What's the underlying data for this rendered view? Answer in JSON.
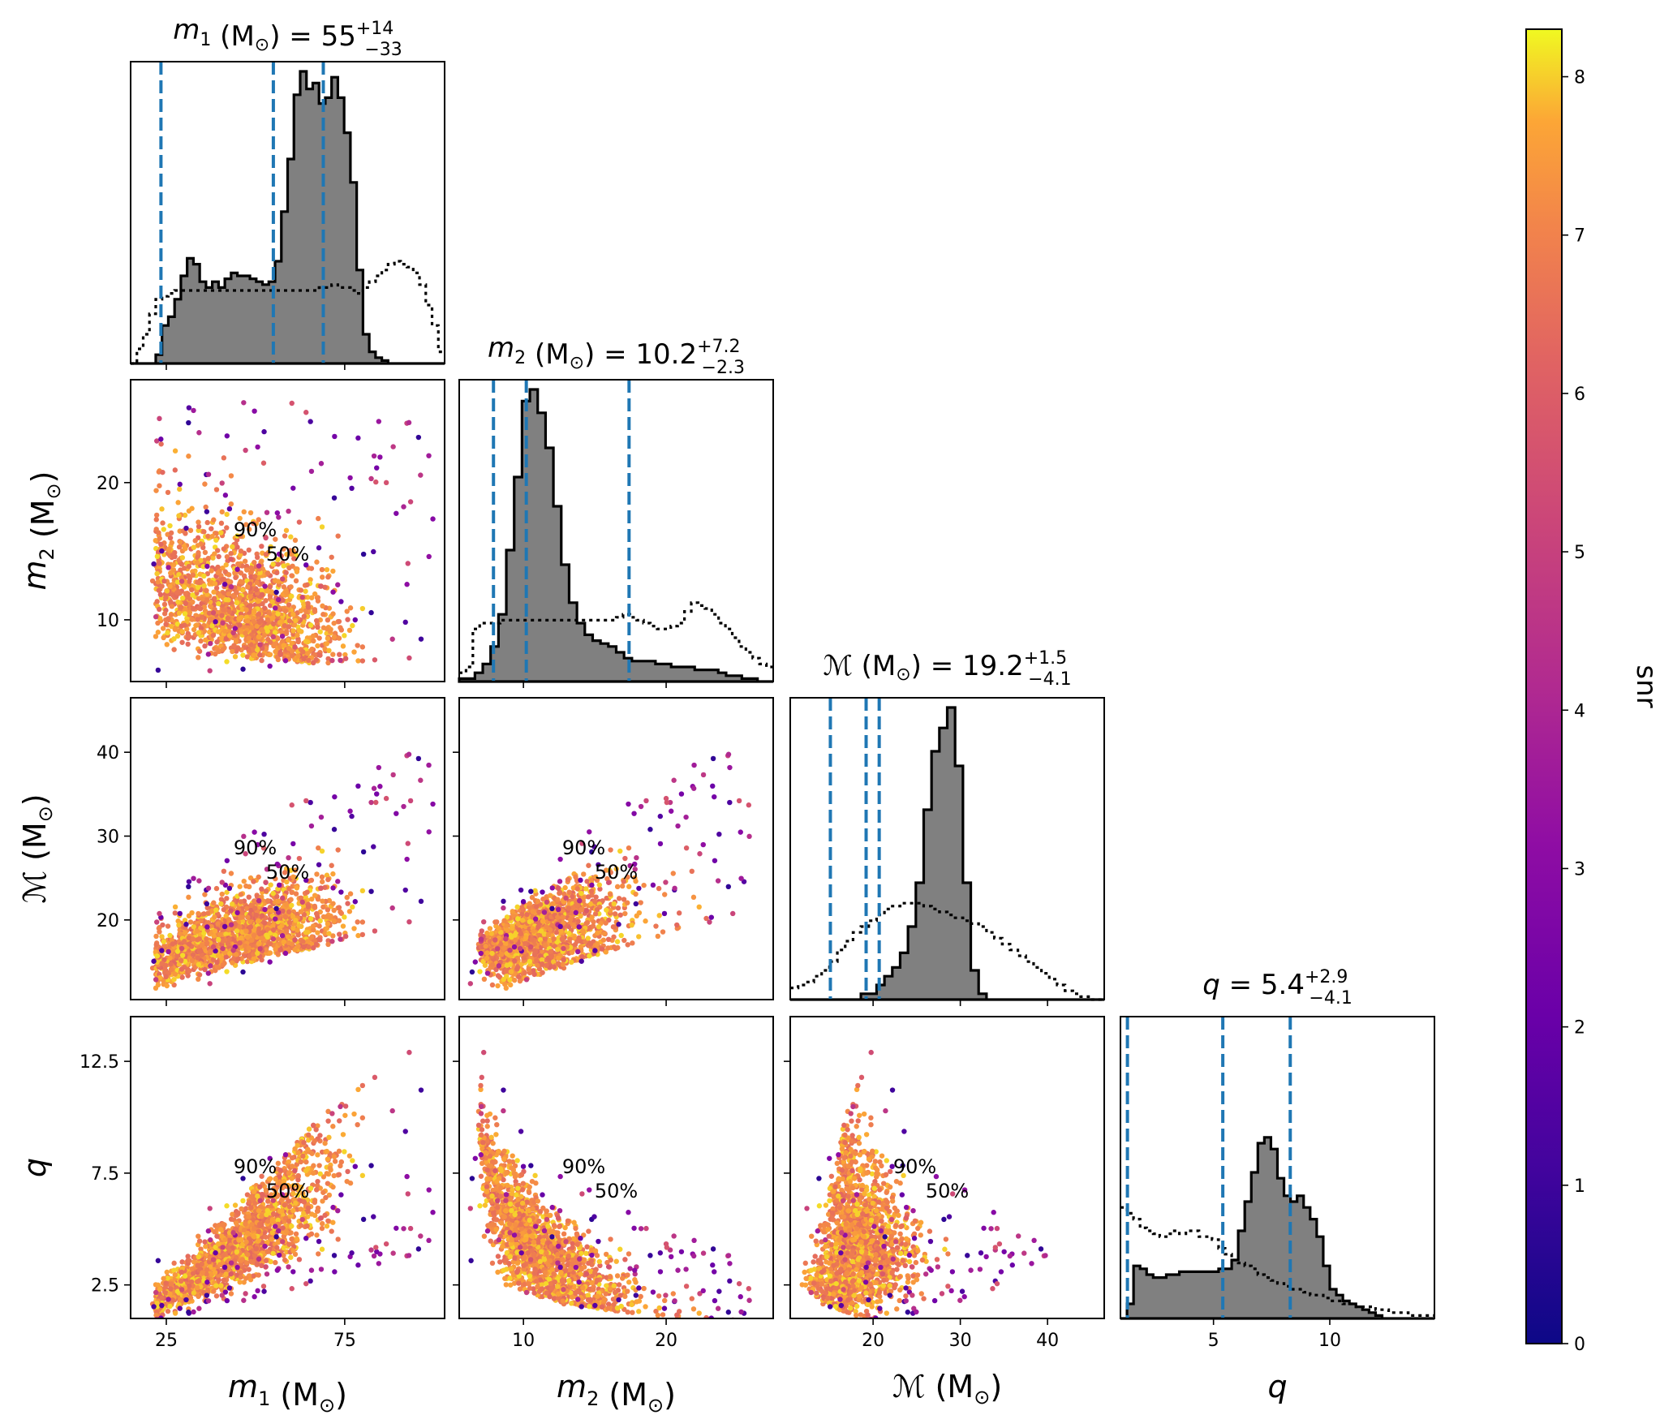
{
  "chart_data": {
    "type": "scatter",
    "kind": "corner-plot",
    "parameters": [
      {
        "key": "m1",
        "sym": "m",
        "sub": "1",
        "unit": "(M",
        "title_value": "55",
        "err_up": "+14",
        "err_dn": "−33",
        "axis_label_rest": " (M⊙)",
        "range": [
          15,
          103
        ],
        "ticks": [
          25,
          75
        ],
        "tick_labels": [
          "25",
          "75"
        ],
        "quantiles": [
          23.5,
          55.0,
          69.0
        ]
      },
      {
        "key": "m2",
        "sym": "m",
        "sub": "2",
        "unit": "(M",
        "title_value": "10.2",
        "err_up": "+7.2",
        "err_dn": "−2.3",
        "axis_label_rest": " (M⊙)",
        "range": [
          5.5,
          27.5
        ],
        "ticks": [
          10,
          20
        ],
        "tick_labels": [
          "10",
          "20"
        ],
        "quantiles": [
          7.9,
          10.2,
          17.4
        ]
      },
      {
        "key": "mc",
        "sym": "ℳ",
        "sub": "",
        "unit": "(M",
        "title_value": "19.2",
        "err_up": "+1.5",
        "err_dn": "−4.1",
        "axis_label_rest": " (M⊙)",
        "range": [
          10.5,
          46.5
        ],
        "ticks": [
          20,
          30,
          40
        ],
        "tick_labels": [
          "20",
          "30",
          "40"
        ],
        "quantiles": [
          15.1,
          19.2,
          20.7
        ]
      },
      {
        "key": "q",
        "sym": "q",
        "sub": "",
        "unit": "",
        "title_value": "5.4",
        "err_up": "+2.9",
        "err_dn": "−4.1",
        "axis_label_rest": "",
        "range": [
          1.0,
          14.5
        ],
        "ticks": [
          2.5,
          7.5,
          12.5
        ],
        "tick_labels": [
          "2.5",
          "7.5",
          "12.5"
        ],
        "diag_ticks": [
          5,
          10
        ],
        "diag_tick_labels": [
          "5",
          "10"
        ],
        "quantiles": [
          1.3,
          5.4,
          8.3
        ]
      }
    ],
    "title_m1": "m1 (M⊙) = 55 +14 −33",
    "title_m2": "m2 (M⊙) = 10.2 +7.2 −2.3",
    "title_mc": "ℳ (M⊙) = 19.2 +1.5 −4.1",
    "title_q": "q = 5.4 +2.9 −4.1",
    "contour_labels": [
      "50%",
      "90%"
    ],
    "colorbar": {
      "label": "snr",
      "min": 0,
      "max": 8.3,
      "ticks": [
        0,
        1,
        2,
        3,
        4,
        5,
        6,
        7,
        8
      ],
      "tick_labels": [
        "0",
        "1",
        "2",
        "3",
        "4",
        "5",
        "6",
        "7",
        "8"
      ],
      "colormap": "plasma"
    },
    "colors": {
      "quantile_line": "#1f77b4",
      "histogram_fill": "#808080",
      "contour": "#000000"
    },
    "histograms": {
      "m1": {
        "posterior": [
          0,
          0,
          0,
          0,
          3,
          13,
          16,
          22,
          30,
          36,
          34,
          28,
          26,
          28,
          26,
          29,
          31,
          30,
          30,
          29,
          28,
          27,
          28,
          35,
          52,
          70,
          92,
          100,
          94,
          96,
          89,
          91,
          98,
          91,
          79,
          62,
          32,
          10,
          4,
          2,
          1,
          0,
          0,
          0,
          0,
          0,
          0,
          0,
          0,
          0
        ],
        "prior": [
          0,
          5,
          10,
          17,
          22,
          23,
          24,
          25,
          25,
          25,
          25,
          25,
          25,
          25,
          25,
          25,
          25,
          25,
          25,
          25,
          25,
          25,
          25,
          25,
          25,
          25,
          25,
          25,
          25,
          25,
          26,
          26,
          27,
          26,
          26,
          25,
          24,
          26,
          28,
          30,
          32,
          34,
          35,
          34,
          33,
          31,
          27,
          20,
          13,
          4
        ]
      },
      "m2": {
        "posterior": [
          1,
          1,
          3,
          6,
          12,
          23,
          45,
          70,
          96,
          100,
          92,
          80,
          60,
          40,
          27,
          20,
          16,
          14,
          13,
          12,
          10,
          8,
          7,
          7,
          7,
          6,
          6,
          5,
          5,
          5,
          4,
          4,
          4,
          3,
          2,
          2,
          1,
          1,
          0,
          0
        ],
        "prior": [
          3,
          5,
          18,
          20,
          20,
          20,
          21,
          21,
          21,
          21,
          21,
          21,
          21,
          21,
          21,
          21,
          21,
          21,
          21,
          21,
          21,
          21,
          21,
          22,
          23,
          22,
          21,
          20,
          19,
          18,
          18,
          19,
          20,
          24,
          27,
          26,
          25,
          23,
          20,
          18,
          15,
          12,
          10,
          8,
          6,
          5
        ]
      },
      "mc": {
        "posterior": [
          0,
          0,
          0,
          0,
          0,
          0,
          0,
          0,
          0,
          2,
          2,
          5,
          8,
          11,
          16,
          25,
          40,
          65,
          85,
          93,
          100,
          80,
          40,
          10,
          2,
          0,
          0,
          0,
          0,
          0,
          0,
          0,
          0,
          0,
          0,
          0,
          0,
          0,
          0,
          0
        ],
        "prior": [
          4,
          5,
          6,
          8,
          10,
          13,
          17,
          20,
          23,
          25,
          27,
          29,
          31,
          32,
          33,
          33,
          33,
          32,
          31,
          30,
          29,
          28,
          27,
          26,
          25,
          23,
          21,
          19,
          17,
          15,
          13,
          11,
          9,
          7,
          5,
          3,
          2,
          1,
          0,
          0
        ]
      },
      "q": {
        "posterior": [
          0,
          5,
          18,
          17,
          15,
          14,
          14,
          15,
          15,
          16,
          16,
          16,
          16,
          16,
          16,
          17,
          17,
          20,
          30,
          40,
          50,
          60,
          62,
          58,
          48,
          42,
          40,
          42,
          38,
          34,
          28,
          18,
          10,
          8,
          6,
          5,
          4,
          3,
          2,
          1,
          0,
          0,
          0,
          0,
          0,
          0,
          0,
          0
        ],
        "prior": [
          38,
          36,
          34,
          31,
          30,
          29,
          28,
          29,
          30,
          29,
          30,
          30,
          28,
          28,
          27,
          24,
          22,
          20,
          19,
          18,
          17,
          15,
          14,
          13,
          12,
          11,
          10,
          10,
          9,
          8,
          8,
          7,
          6,
          6,
          5,
          5,
          4,
          4,
          4,
          3,
          3,
          2,
          2,
          2,
          1,
          1,
          1,
          1
        ]
      }
    }
  }
}
